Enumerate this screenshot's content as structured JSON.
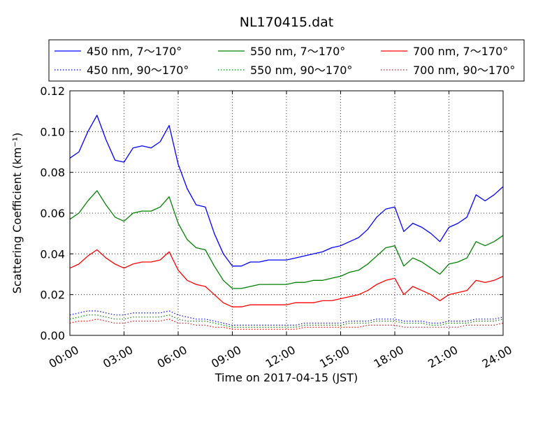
{
  "chart_data": {
    "type": "line",
    "title": "NL170415.dat",
    "xlabel": "Time on 2017-04-15 (JST)",
    "ylabel": "Scattering Coefficient (km⁻¹)",
    "xlim": [
      "00:00",
      "24:00"
    ],
    "ylim": [
      0,
      0.12
    ],
    "grid": true,
    "legend_position": "top",
    "x_ticks": [
      "00:00",
      "03:00",
      "06:00",
      "09:00",
      "12:00",
      "15:00",
      "18:00",
      "21:00",
      "24:00"
    ],
    "y_ticks": [
      "0.00",
      "0.02",
      "0.04",
      "0.06",
      "0.08",
      "0.10",
      "0.12"
    ],
    "x": [
      "00:00",
      "00:30",
      "01:00",
      "01:30",
      "02:00",
      "02:30",
      "03:00",
      "03:30",
      "04:00",
      "04:30",
      "05:00",
      "05:30",
      "06:00",
      "06:30",
      "07:00",
      "07:30",
      "08:00",
      "08:30",
      "09:00",
      "09:30",
      "10:00",
      "10:30",
      "11:00",
      "11:30",
      "12:00",
      "12:30",
      "13:00",
      "13:30",
      "14:00",
      "14:30",
      "15:00",
      "15:30",
      "16:00",
      "16:30",
      "17:00",
      "17:30",
      "18:00",
      "18:30",
      "19:00",
      "19:30",
      "20:00",
      "20:30",
      "21:00",
      "21:30",
      "22:00",
      "22:30",
      "23:00",
      "23:30",
      "24:00"
    ],
    "series": [
      {
        "name": "450 nm, 7～170°",
        "color": "#0000ff",
        "style": "solid",
        "values": [
          0.087,
          0.09,
          0.1,
          0.108,
          0.096,
          0.086,
          0.085,
          0.092,
          0.093,
          0.092,
          0.095,
          0.103,
          0.084,
          0.072,
          0.064,
          0.063,
          0.05,
          0.04,
          0.034,
          0.034,
          0.036,
          0.036,
          0.037,
          0.037,
          0.037,
          0.038,
          0.039,
          0.04,
          0.041,
          0.043,
          0.044,
          0.046,
          0.048,
          0.052,
          0.058,
          0.062,
          0.063,
          0.051,
          0.055,
          0.053,
          0.05,
          0.046,
          0.053,
          0.055,
          0.058,
          0.069,
          0.066,
          0.069,
          0.073
        ]
      },
      {
        "name": "450 nm, 90～170°",
        "color": "#0000ff",
        "style": "dotted",
        "values": [
          0.01,
          0.011,
          0.012,
          0.012,
          0.011,
          0.01,
          0.01,
          0.011,
          0.011,
          0.011,
          0.011,
          0.012,
          0.01,
          0.009,
          0.008,
          0.008,
          0.007,
          0.006,
          0.005,
          0.005,
          0.005,
          0.005,
          0.005,
          0.005,
          0.005,
          0.005,
          0.006,
          0.006,
          0.006,
          0.006,
          0.006,
          0.007,
          0.007,
          0.007,
          0.008,
          0.008,
          0.008,
          0.007,
          0.007,
          0.007,
          0.006,
          0.006,
          0.007,
          0.007,
          0.007,
          0.008,
          0.008,
          0.008,
          0.009
        ]
      },
      {
        "name": "550 nm, 7～170°",
        "color": "#008000",
        "style": "solid",
        "values": [
          0.057,
          0.06,
          0.066,
          0.071,
          0.064,
          0.058,
          0.056,
          0.06,
          0.061,
          0.061,
          0.063,
          0.068,
          0.055,
          0.047,
          0.043,
          0.042,
          0.034,
          0.027,
          0.023,
          0.023,
          0.024,
          0.025,
          0.025,
          0.025,
          0.025,
          0.026,
          0.026,
          0.027,
          0.027,
          0.028,
          0.029,
          0.031,
          0.032,
          0.035,
          0.039,
          0.043,
          0.044,
          0.034,
          0.038,
          0.036,
          0.033,
          0.03,
          0.035,
          0.036,
          0.038,
          0.046,
          0.044,
          0.046,
          0.049
        ]
      },
      {
        "name": "550 nm, 90～170°",
        "color": "#008000",
        "style": "dotted",
        "values": [
          0.008,
          0.009,
          0.01,
          0.01,
          0.009,
          0.008,
          0.008,
          0.009,
          0.009,
          0.009,
          0.009,
          0.01,
          0.008,
          0.007,
          0.007,
          0.007,
          0.006,
          0.005,
          0.004,
          0.004,
          0.004,
          0.004,
          0.004,
          0.004,
          0.004,
          0.004,
          0.005,
          0.005,
          0.005,
          0.005,
          0.005,
          0.006,
          0.006,
          0.006,
          0.007,
          0.007,
          0.007,
          0.006,
          0.006,
          0.006,
          0.005,
          0.005,
          0.006,
          0.006,
          0.006,
          0.007,
          0.007,
          0.007,
          0.008
        ]
      },
      {
        "name": "700 nm, 7～170°",
        "color": "#ff0000",
        "style": "solid",
        "values": [
          0.033,
          0.035,
          0.039,
          0.042,
          0.038,
          0.035,
          0.033,
          0.035,
          0.036,
          0.036,
          0.037,
          0.041,
          0.032,
          0.027,
          0.025,
          0.024,
          0.02,
          0.016,
          0.014,
          0.014,
          0.015,
          0.015,
          0.015,
          0.015,
          0.015,
          0.016,
          0.016,
          0.016,
          0.017,
          0.017,
          0.018,
          0.019,
          0.02,
          0.022,
          0.025,
          0.027,
          0.028,
          0.02,
          0.024,
          0.022,
          0.02,
          0.017,
          0.02,
          0.021,
          0.022,
          0.027,
          0.026,
          0.027,
          0.029
        ]
      },
      {
        "name": "700 nm, 90～170°",
        "color": "#ff0000",
        "style": "dotted",
        "values": [
          0.006,
          0.007,
          0.007,
          0.008,
          0.007,
          0.006,
          0.006,
          0.007,
          0.007,
          0.007,
          0.007,
          0.008,
          0.006,
          0.006,
          0.005,
          0.005,
          0.004,
          0.004,
          0.003,
          0.003,
          0.003,
          0.003,
          0.003,
          0.003,
          0.003,
          0.003,
          0.004,
          0.004,
          0.004,
          0.004,
          0.004,
          0.004,
          0.004,
          0.005,
          0.005,
          0.005,
          0.005,
          0.004,
          0.004,
          0.004,
          0.004,
          0.004,
          0.004,
          0.004,
          0.005,
          0.005,
          0.005,
          0.005,
          0.006
        ]
      }
    ]
  }
}
